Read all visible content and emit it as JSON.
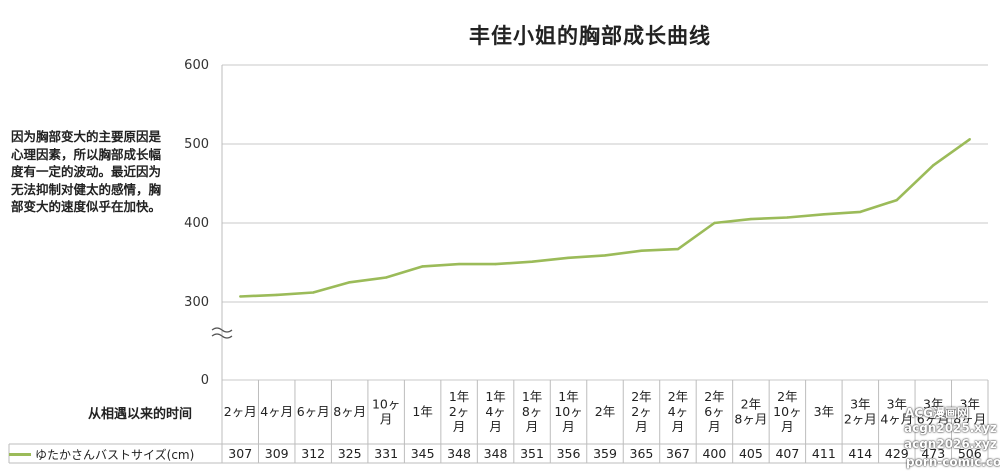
{
  "chart_data": {
    "type": "line",
    "title": "丰佳小姐的胸部成长曲线",
    "note": "因为胸部变大的主要原因是心理因素，所以胸部成长幅度有一定的波动。最近因为无法抑制对健太的感情，胸部变大的速度似乎在加快。",
    "xlabel": "从相遇以来的时间",
    "ylabel": "",
    "y_ticks": [
      0,
      300,
      400,
      500,
      600
    ],
    "ylim": [
      300,
      600
    ],
    "axis_break": true,
    "grid": true,
    "legend": "table",
    "series_color": "#9bbb59",
    "categories": [
      "2ヶ月",
      "4ヶ月",
      "6ヶ月",
      "8ヶ月",
      "10ヶ 月",
      "1年",
      "1年 2ヶ 月",
      "1年 4ヶ 月",
      "1年 8ヶ 月",
      "1年 10ヶ 月",
      "2年",
      "2年 2ヶ 月",
      "2年 4ヶ 月",
      "2年 6ヶ 月",
      "2年 8ヶ月",
      "2年 10ヶ 月",
      "3年",
      "3年 2ヶ月",
      "3年 4ヶ月",
      "3年 6ヶ月",
      "3年 8ヶ月"
    ],
    "series": [
      {
        "name": "ゆたかさんバストサイズ(cm)",
        "values": [
          307,
          309,
          312,
          325,
          331,
          345,
          348,
          348,
          351,
          356,
          359,
          365,
          367,
          400,
          405,
          407,
          411,
          414,
          429,
          473,
          506
        ]
      }
    ]
  },
  "watermarks": [
    "ACG漫画网",
    "acgn2025.xyz",
    "acgn2026.xyz",
    "porn-comic.com"
  ]
}
